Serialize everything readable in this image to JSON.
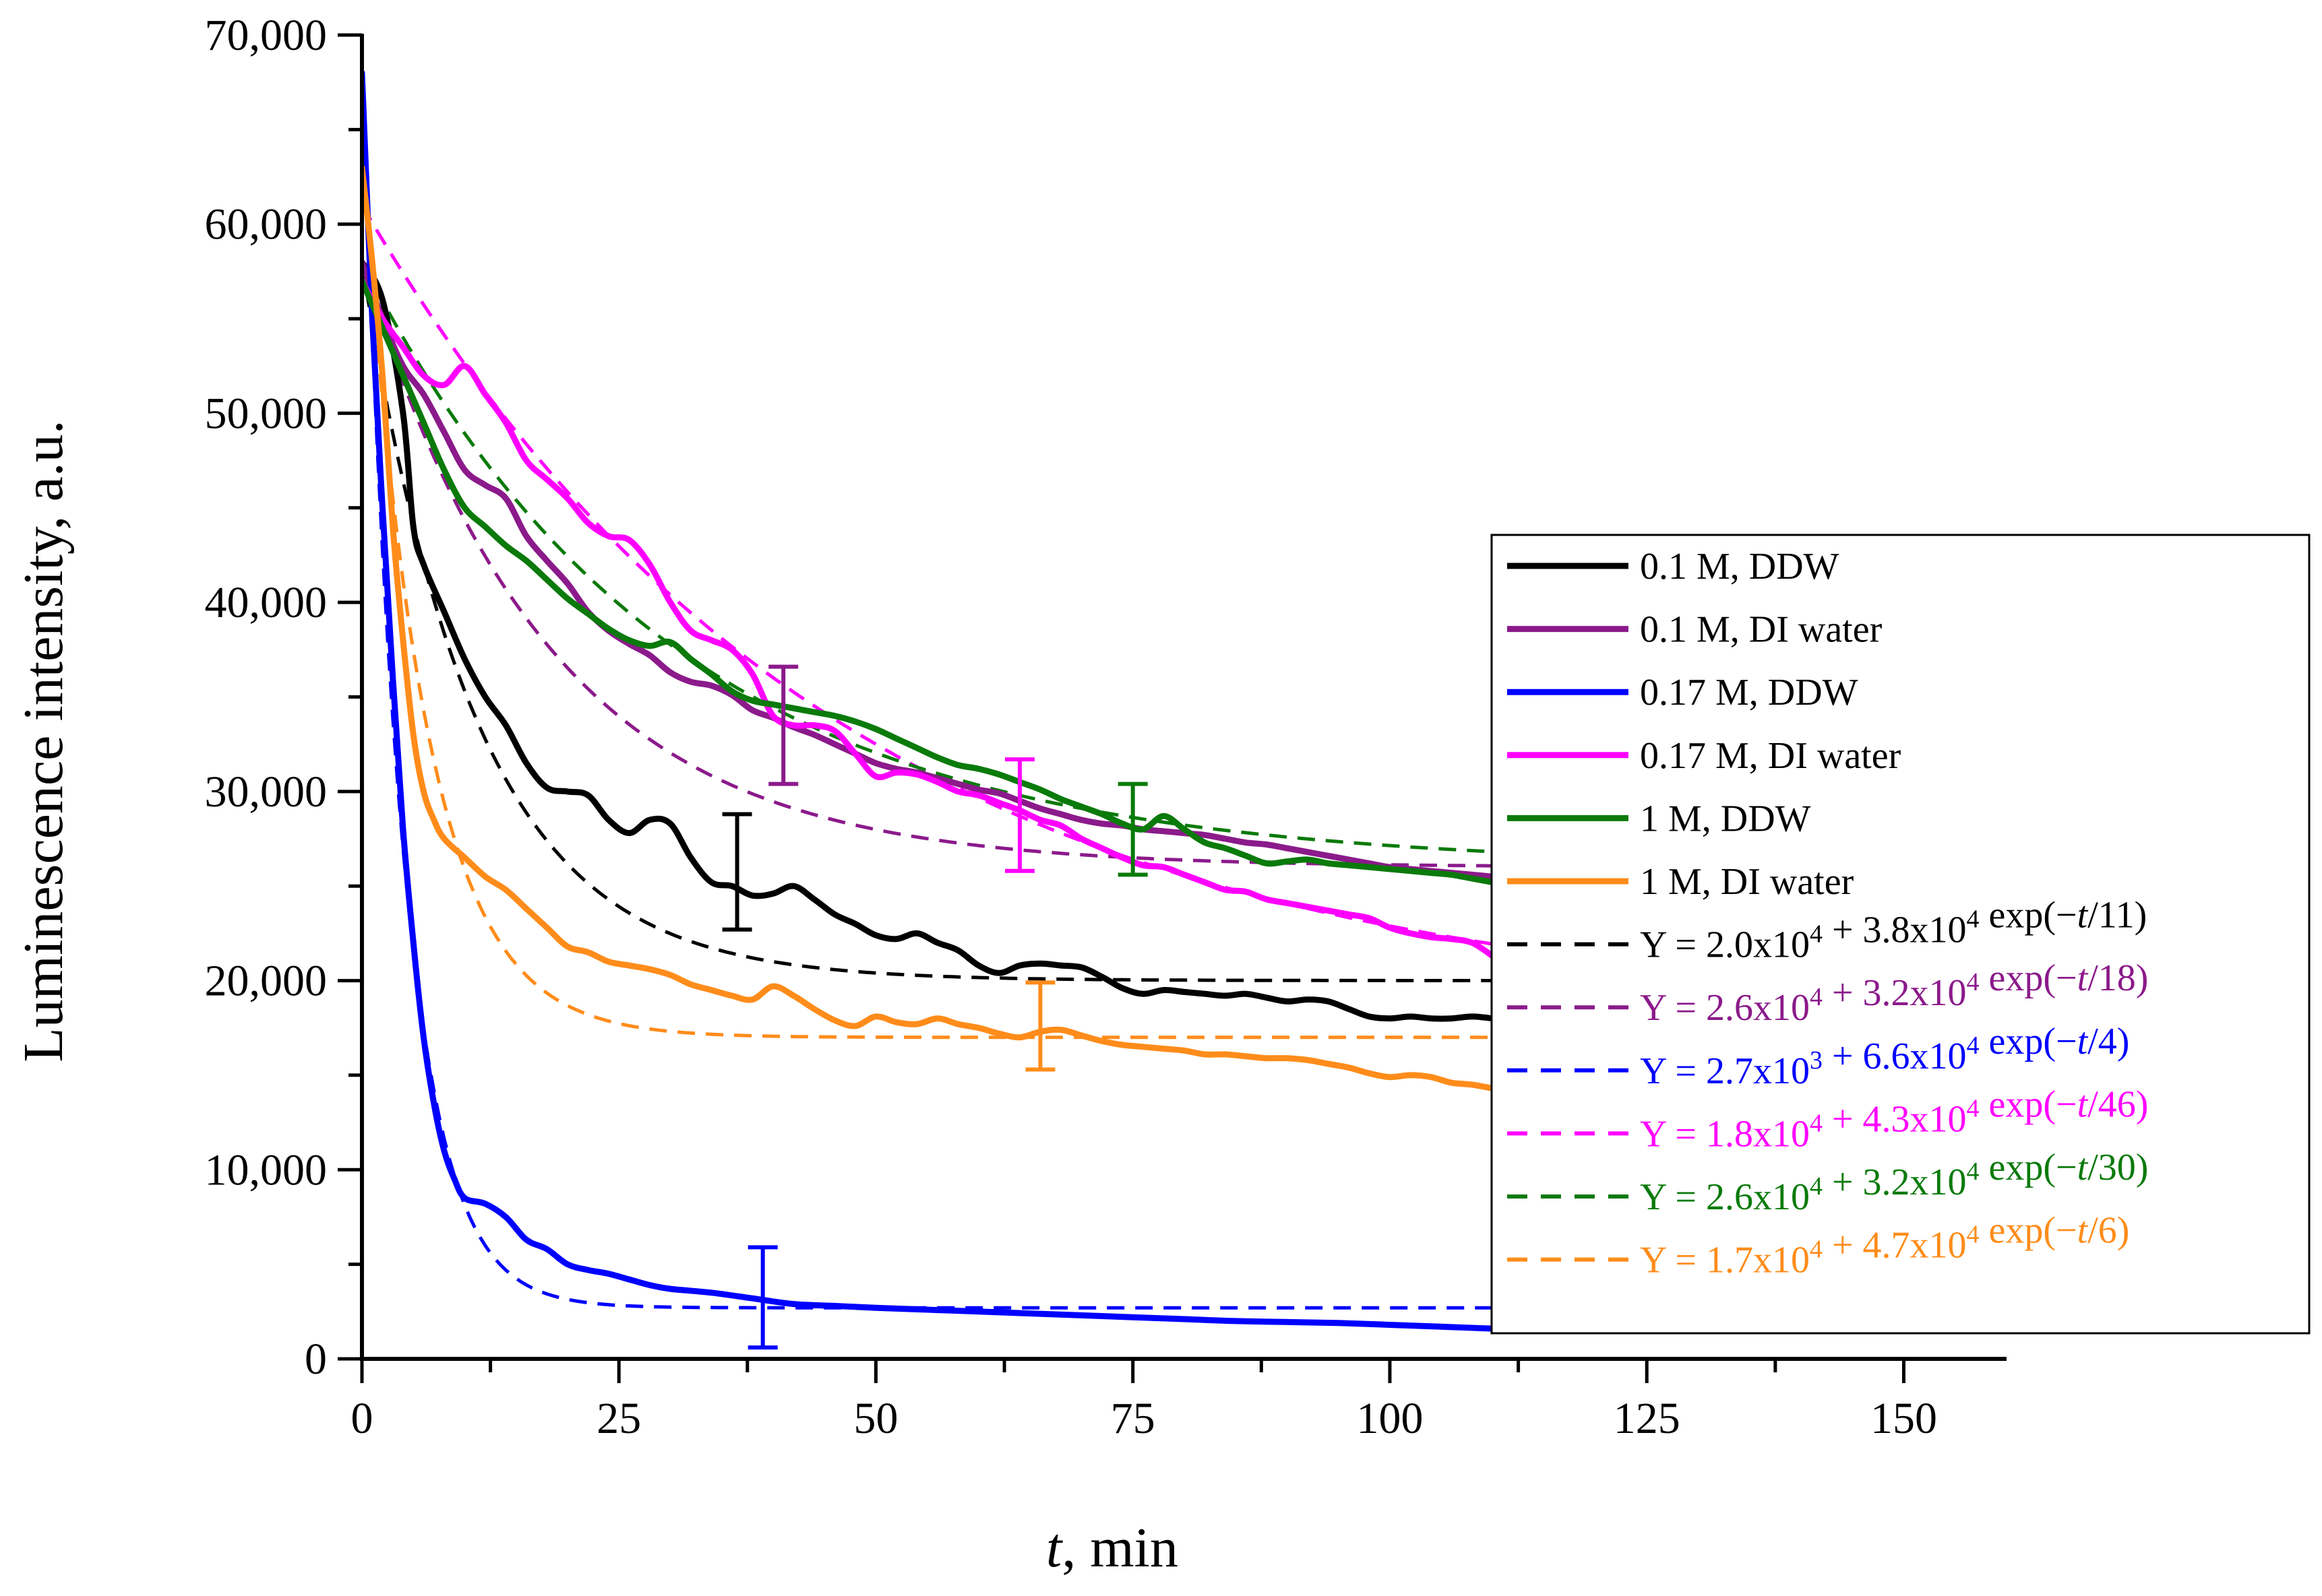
{
  "chart_data": {
    "type": "line",
    "title": "",
    "xlabel": {
      "italic": "t",
      "rest": ", min"
    },
    "ylabel": "Luminescence intensity, a.u.",
    "xlim": [
      0,
      160
    ],
    "ylim": [
      0,
      70000
    ],
    "xticks": [
      0,
      25,
      50,
      75,
      100,
      125,
      150
    ],
    "xtick_labels": [
      "0",
      "25",
      "50",
      "75",
      "100",
      "125",
      "150"
    ],
    "yticks": [
      0,
      10000,
      20000,
      30000,
      40000,
      50000,
      60000,
      70000
    ],
    "ytick_labels": [
      "0",
      "10,000",
      "20,000",
      "30,000",
      "40,000",
      "50,000",
      "60,000",
      "70,000"
    ],
    "legend_position": "right",
    "series": [
      {
        "name": "0.1 M, DDW",
        "color": "#000000",
        "x": [
          0,
          2,
          4,
          5,
          6,
          8,
          10,
          12,
          14,
          16,
          18,
          20,
          22,
          24,
          26,
          28,
          30,
          32,
          34,
          36,
          38,
          40,
          42,
          44,
          46,
          48,
          50,
          52,
          54,
          56,
          58,
          60,
          62,
          64,
          66,
          68,
          70,
          72,
          74,
          76,
          78,
          80,
          82,
          84,
          86,
          88,
          90,
          92,
          94,
          96,
          98,
          100,
          102,
          104,
          106,
          108,
          110
        ],
        "values": [
          58000,
          56000,
          50000,
          44000,
          42000,
          39500,
          37000,
          35000,
          33500,
          31500,
          30200,
          30000,
          29800,
          28500,
          27800,
          28500,
          28300,
          26500,
          25200,
          25000,
          24500,
          24600,
          25000,
          24300,
          23500,
          23000,
          22400,
          22200,
          22500,
          22000,
          21600,
          20800,
          20400,
          20800,
          20900,
          20800,
          20700,
          20200,
          19600,
          19300,
          19500,
          19400,
          19300,
          19200,
          19300,
          19100,
          18900,
          19000,
          18900,
          18500,
          18100,
          18000,
          18100,
          18000,
          18000,
          18100,
          18000
        ]
      },
      {
        "name": "0.1 M, DI water",
        "color": "#8B1A8B",
        "x": [
          0,
          2,
          4,
          6,
          8,
          10,
          12,
          14,
          16,
          18,
          20,
          22,
          24,
          26,
          28,
          30,
          32,
          34,
          36,
          38,
          40,
          42,
          44,
          46,
          48,
          50,
          52,
          54,
          56,
          58,
          60,
          62,
          64,
          66,
          68,
          70,
          72,
          74,
          76,
          78,
          80,
          82,
          84,
          86,
          88,
          90,
          92,
          94,
          96,
          98,
          100,
          102,
          104,
          106,
          108,
          110
        ],
        "values": [
          58000,
          55000,
          52500,
          51000,
          49000,
          47000,
          46200,
          45500,
          43500,
          42200,
          41000,
          39500,
          38500,
          37800,
          37200,
          36300,
          35800,
          35600,
          35100,
          34300,
          33900,
          33400,
          33000,
          32500,
          32000,
          31500,
          31200,
          31000,
          30700,
          30400,
          30100,
          29900,
          29500,
          29100,
          28800,
          28500,
          28300,
          28200,
          28000,
          27900,
          27800,
          27700,
          27500,
          27300,
          27200,
          27000,
          26800,
          26600,
          26400,
          26200,
          26000,
          25900,
          25800,
          25700,
          25600,
          25500
        ]
      },
      {
        "name": "0.17 M, DDW",
        "color": "#0000FF",
        "x": [
          0,
          1,
          2,
          3,
          4,
          5,
          6,
          7,
          8,
          9,
          10,
          12,
          14,
          16,
          18,
          20,
          22,
          24,
          26,
          28,
          30,
          34,
          38,
          42,
          46,
          50,
          55,
          60,
          65,
          70,
          75,
          80,
          85,
          90,
          95,
          100,
          105,
          110
        ],
        "values": [
          68000,
          55000,
          45000,
          36000,
          28000,
          22000,
          17000,
          13500,
          11000,
          9500,
          8500,
          8200,
          7500,
          6300,
          5800,
          5000,
          4700,
          4500,
          4200,
          3900,
          3700,
          3500,
          3200,
          2900,
          2800,
          2700,
          2600,
          2500,
          2400,
          2300,
          2200,
          2100,
          2000,
          1950,
          1900,
          1800,
          1700,
          1600
        ]
      },
      {
        "name": "0.17 M, DI water",
        "color": "#FF00FF",
        "x": [
          0,
          2,
          4,
          6,
          8,
          10,
          12,
          14,
          16,
          18,
          20,
          22,
          24,
          26,
          28,
          30,
          32,
          34,
          36,
          38,
          40,
          42,
          44,
          46,
          48,
          50,
          52,
          54,
          56,
          58,
          60,
          62,
          64,
          66,
          68,
          70,
          72,
          74,
          76,
          78,
          80,
          82,
          84,
          86,
          88,
          90,
          92,
          94,
          96,
          98,
          100,
          102,
          104,
          106,
          108,
          110
        ],
        "values": [
          57000,
          55000,
          53500,
          52000,
          51500,
          52500,
          51000,
          49500,
          47500,
          46500,
          45500,
          44200,
          43500,
          43300,
          42000,
          40000,
          38500,
          38000,
          37500,
          36200,
          34000,
          33500,
          33500,
          33200,
          32000,
          30800,
          31000,
          30900,
          30500,
          30000,
          29800,
          29400,
          29000,
          28500,
          28200,
          27500,
          27000,
          26500,
          26100,
          26000,
          25600,
          25200,
          24800,
          24700,
          24300,
          24100,
          23900,
          23700,
          23500,
          23300,
          22800,
          22500,
          22300,
          22200,
          22000,
          21300
        ]
      },
      {
        "name": "1 M, DDW",
        "color": "#0A7A0A",
        "x": [
          0,
          2,
          4,
          6,
          8,
          10,
          12,
          14,
          16,
          18,
          20,
          22,
          24,
          26,
          28,
          30,
          32,
          34,
          36,
          38,
          40,
          42,
          44,
          46,
          48,
          50,
          52,
          54,
          56,
          58,
          60,
          62,
          64,
          66,
          68,
          70,
          72,
          74,
          76,
          78,
          80,
          82,
          84,
          86,
          88,
          90,
          92,
          94,
          96,
          98,
          100,
          102,
          104,
          106,
          108,
          110
        ],
        "values": [
          57000,
          54500,
          52000,
          49500,
          47000,
          45000,
          44000,
          43000,
          42200,
          41200,
          40200,
          39400,
          38600,
          38000,
          37700,
          37900,
          37000,
          36200,
          35300,
          34800,
          34600,
          34400,
          34200,
          34000,
          33700,
          33300,
          32800,
          32300,
          31800,
          31400,
          31200,
          30900,
          30500,
          30100,
          29600,
          29200,
          28800,
          28300,
          28000,
          28700,
          28000,
          27300,
          27000,
          26600,
          26200,
          26300,
          26400,
          26200,
          26100,
          26000,
          25900,
          25800,
          25700,
          25600,
          25400,
          25200
        ]
      },
      {
        "name": "1 M, DI water",
        "color": "#FF8C1A",
        "x": [
          0,
          1,
          2,
          3,
          4,
          5,
          6,
          7,
          8,
          10,
          12,
          14,
          16,
          18,
          20,
          22,
          24,
          26,
          28,
          30,
          32,
          34,
          36,
          38,
          40,
          42,
          44,
          46,
          48,
          50,
          52,
          54,
          56,
          58,
          60,
          62,
          64,
          66,
          68,
          70,
          72,
          74,
          76,
          78,
          80,
          82,
          84,
          86,
          88,
          90,
          92,
          94,
          96,
          98,
          100,
          102,
          104,
          106,
          108,
          110
        ],
        "values": [
          63000,
          58000,
          52000,
          44000,
          38000,
          33000,
          30000,
          28500,
          27500,
          26500,
          25500,
          24800,
          23800,
          22800,
          21800,
          21500,
          21000,
          20800,
          20600,
          20300,
          19800,
          19500,
          19200,
          19000,
          19700,
          19200,
          18500,
          17900,
          17600,
          18100,
          17800,
          17700,
          18000,
          17700,
          17500,
          17200,
          17000,
          17300,
          17400,
          17100,
          16800,
          16600,
          16500,
          16400,
          16300,
          16100,
          16100,
          16000,
          15900,
          15900,
          15800,
          15600,
          15400,
          15100,
          14900,
          15000,
          14900,
          14600,
          14500,
          14300
        ]
      }
    ],
    "fits": [
      {
        "label": {
          "a": "2.0",
          "ea": "4",
          "b": "3.8",
          "eb": "4",
          "tau": "11"
        },
        "color": "#000000",
        "A": 20000,
        "B": 38000,
        "tau": 11
      },
      {
        "label": {
          "a": "2.6",
          "ea": "4",
          "b": "3.2",
          "eb": "4",
          "tau": "18"
        },
        "color": "#8B1A8B",
        "A": 26000,
        "B": 32000,
        "tau": 18
      },
      {
        "label": {
          "a": "2.7",
          "ea": "3",
          "b": "6.6",
          "eb": "4",
          "tau": "4"
        },
        "color": "#0000FF",
        "A": 2700,
        "B": 66000,
        "tau": 4
      },
      {
        "label": {
          "a": "1.8",
          "ea": "4",
          "b": "4.3",
          "eb": "4",
          "tau": "46"
        },
        "color": "#FF00FF",
        "A": 18000,
        "B": 43000,
        "tau": 46
      },
      {
        "label": {
          "a": "2.6",
          "ea": "4",
          "b": "3.2",
          "eb": "4",
          "tau": "30"
        },
        "color": "#0A7A0A",
        "A": 26000,
        "B": 32000,
        "tau": 30
      },
      {
        "label": {
          "a": "1.7",
          "ea": "4",
          "b": "4.7",
          "eb": "4",
          "tau": "6"
        },
        "color": "#FF8C1A",
        "A": 17000,
        "B": 47000,
        "tau": 6
      }
    ],
    "fit_x_range": [
      0,
      112
    ],
    "error_bars": [
      {
        "series": "0.1 M, DDW",
        "x": 36.5,
        "low": 22700,
        "high": 28800
      },
      {
        "series": "0.1 M, DI water",
        "x": 41,
        "low": 30400,
        "high": 36600
      },
      {
        "series": "0.17 M, DDW",
        "x": 39,
        "low": 600,
        "high": 5900
      },
      {
        "series": "0.17 M, DI water",
        "x": 64,
        "low": 25800,
        "high": 31700
      },
      {
        "series": "1 M, DDW",
        "x": 75,
        "low": 25600,
        "high": 30400
      },
      {
        "series": "1 M, DI water",
        "x": 66,
        "low": 15300,
        "high": 19900
      }
    ]
  }
}
